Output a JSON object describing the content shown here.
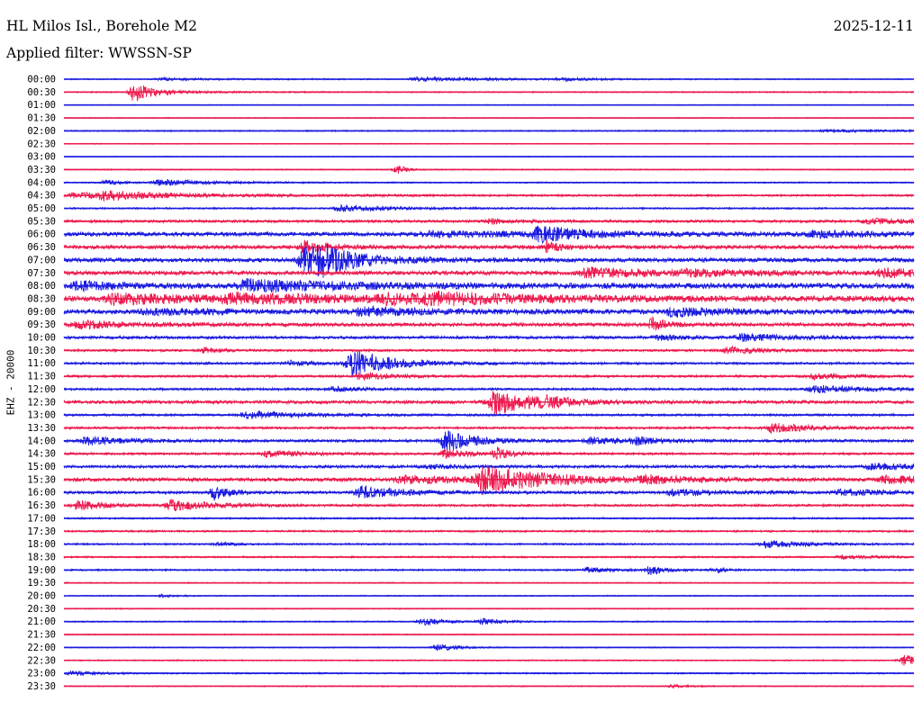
{
  "header": {
    "title": "HL Milos Isl., Borehole M2",
    "filter": "Applied filter: WWSSN-SP",
    "date": "2025-12-11"
  },
  "chart_data": {
    "type": "line",
    "ylabel": "EHZ - 20000",
    "x_unit": "minutes within trace line",
    "xlim": [
      0,
      30
    ],
    "colors": {
      "even_line": "#1a1adf",
      "odd_line": "#ec1a4e"
    },
    "rows": [
      {
        "time": "00:00",
        "noise": 0.6,
        "events": [
          [
            3.5,
            5,
            1.2
          ],
          [
            12.5,
            7,
            2.0
          ],
          [
            17.5,
            2,
            1.4
          ]
        ]
      },
      {
        "time": "00:30",
        "noise": 0.7,
        "events": [
          [
            2.5,
            1,
            10.0
          ],
          [
            2.6,
            4,
            2.0
          ]
        ]
      },
      {
        "time": "01:00",
        "noise": 0.5,
        "events": []
      },
      {
        "time": "01:30",
        "noise": 0.5,
        "events": []
      },
      {
        "time": "02:00",
        "noise": 0.7,
        "events": [
          [
            27,
            8,
            1.0
          ]
        ]
      },
      {
        "time": "02:30",
        "noise": 0.5,
        "events": []
      },
      {
        "time": "03:00",
        "noise": 0.5,
        "events": []
      },
      {
        "time": "03:30",
        "noise": 0.6,
        "events": [
          [
            11.8,
            0.5,
            5.0
          ]
        ]
      },
      {
        "time": "04:00",
        "noise": 0.7,
        "events": [
          [
            1.5,
            1,
            2.5
          ],
          [
            3.4,
            4,
            3.0
          ]
        ]
      },
      {
        "time": "04:30",
        "noise": 1.0,
        "events": [
          [
            0.5,
            10,
            3.0
          ],
          [
            1.4,
            2,
            4.0
          ]
        ]
      },
      {
        "time": "05:00",
        "noise": 0.9,
        "events": [
          [
            9.8,
            4,
            3.0
          ]
        ]
      },
      {
        "time": "05:30",
        "noise": 1.4,
        "events": [
          [
            15,
            2,
            2.5
          ],
          [
            28.5,
            5,
            2.5
          ]
        ]
      },
      {
        "time": "06:00",
        "noise": 2.2,
        "events": [
          [
            16.8,
            3,
            8.0
          ],
          [
            13,
            14,
            2.0
          ],
          [
            26.5,
            5,
            3.0
          ]
        ]
      },
      {
        "time": "06:30",
        "noise": 2.0,
        "events": [
          [
            17,
            1,
            6.0
          ],
          [
            8.5,
            2,
            6.0
          ]
        ]
      },
      {
        "time": "07:00",
        "noise": 2.2,
        "events": [
          [
            8.5,
            4,
            14.0
          ],
          [
            9.1,
            1.5,
            10.0
          ]
        ]
      },
      {
        "time": "07:30",
        "noise": 2.2,
        "events": [
          [
            18.5,
            5,
            5.0
          ],
          [
            29,
            5,
            4.0
          ],
          [
            22,
            6,
            2.5
          ]
        ]
      },
      {
        "time": "08:00",
        "noise": 2.8,
        "events": [
          [
            6.5,
            8,
            6.0
          ],
          [
            0.5,
            3,
            4.0
          ]
        ]
      },
      {
        "time": "08:30",
        "noise": 3.0,
        "events": [
          [
            1.8,
            7,
            5.0
          ],
          [
            6,
            9,
            4.0
          ],
          [
            11.5,
            9,
            4.0
          ],
          [
            13,
            6,
            3.0
          ]
        ]
      },
      {
        "time": "09:00",
        "noise": 2.5,
        "events": [
          [
            10.5,
            5,
            4.0
          ],
          [
            21.5,
            4,
            4.0
          ],
          [
            3,
            6,
            2.5
          ]
        ]
      },
      {
        "time": "09:30",
        "noise": 1.9,
        "events": [
          [
            0.5,
            4,
            4.0
          ],
          [
            20.8,
            1,
            7.0
          ]
        ]
      },
      {
        "time": "10:00",
        "noise": 1.5,
        "events": [
          [
            24,
            4,
            3.5
          ],
          [
            21,
            2,
            2.5
          ]
        ]
      },
      {
        "time": "10:30",
        "noise": 1.2,
        "events": [
          [
            23.5,
            3,
            3.5
          ],
          [
            5,
            1,
            3.0
          ]
        ]
      },
      {
        "time": "11:00",
        "noise": 1.2,
        "events": [
          [
            10.2,
            3,
            14.0
          ],
          [
            8,
            2,
            2.5
          ]
        ]
      },
      {
        "time": "11:30",
        "noise": 1.2,
        "events": [
          [
            26.5,
            3,
            3.0
          ],
          [
            10.5,
            2,
            4.0
          ]
        ]
      },
      {
        "time": "12:00",
        "noise": 1.2,
        "events": [
          [
            26.5,
            4,
            4.0
          ],
          [
            9.5,
            2,
            2.5
          ]
        ]
      },
      {
        "time": "12:30",
        "noise": 1.7,
        "events": [
          [
            15.2,
            3,
            14.0
          ],
          [
            17,
            1.5,
            4.0
          ]
        ]
      },
      {
        "time": "13:00",
        "noise": 1.2,
        "events": [
          [
            6.5,
            4,
            4.0
          ]
        ]
      },
      {
        "time": "13:30",
        "noise": 1.2,
        "events": [
          [
            25,
            3,
            5.0
          ]
        ]
      },
      {
        "time": "14:00",
        "noise": 1.5,
        "events": [
          [
            13.5,
            2,
            12.0
          ],
          [
            0.8,
            3,
            4.0
          ],
          [
            18.6,
            2,
            3.5
          ],
          [
            20.2,
            1.5,
            4.0
          ]
        ]
      },
      {
        "time": "14:30",
        "noise": 1.2,
        "events": [
          [
            7.2,
            3,
            3.0
          ],
          [
            13.5,
            2,
            4.0
          ],
          [
            15.3,
            1,
            6.0
          ]
        ]
      },
      {
        "time": "15:00",
        "noise": 1.5,
        "events": [
          [
            28.5,
            4,
            3.0
          ],
          [
            13,
            3,
            2.0
          ]
        ]
      },
      {
        "time": "15:30",
        "noise": 1.9,
        "events": [
          [
            14.8,
            5,
            14.0
          ],
          [
            12,
            5,
            4.0
          ],
          [
            20.5,
            3,
            3.5
          ],
          [
            29,
            3,
            4.5
          ]
        ]
      },
      {
        "time": "16:00",
        "noise": 1.5,
        "events": [
          [
            5.3,
            1,
            8.0
          ],
          [
            10.5,
            3,
            7.0
          ],
          [
            21.5,
            4,
            3.0
          ],
          [
            27.5,
            4,
            3.0
          ]
        ]
      },
      {
        "time": "16:30",
        "noise": 1.2,
        "events": [
          [
            0.5,
            2,
            5.0
          ],
          [
            3.8,
            3,
            6.0
          ]
        ]
      },
      {
        "time": "17:00",
        "noise": 0.9,
        "events": []
      },
      {
        "time": "17:30",
        "noise": 1.0,
        "events": []
      },
      {
        "time": "18:00",
        "noise": 0.9,
        "events": [
          [
            24.8,
            3,
            4.0
          ],
          [
            5.5,
            1,
            2.0
          ]
        ]
      },
      {
        "time": "18:30",
        "noise": 0.9,
        "events": [
          [
            27.5,
            2,
            2.0
          ]
        ]
      },
      {
        "time": "19:00",
        "noise": 0.9,
        "events": [
          [
            20.7,
            1,
            5.0
          ],
          [
            18.5,
            2,
            2.5
          ],
          [
            23,
            0.6,
            3.0
          ]
        ]
      },
      {
        "time": "19:30",
        "noise": 0.6,
        "events": []
      },
      {
        "time": "20:00",
        "noise": 0.6,
        "events": [
          [
            3.5,
            1,
            1.5
          ]
        ]
      },
      {
        "time": "20:30",
        "noise": 0.6,
        "events": []
      },
      {
        "time": "21:00",
        "noise": 0.7,
        "events": [
          [
            12.7,
            1.5,
            4.0
          ],
          [
            14.8,
            1.5,
            3.0
          ]
        ]
      },
      {
        "time": "21:30",
        "noise": 0.6,
        "events": []
      },
      {
        "time": "22:00",
        "noise": 0.6,
        "events": [
          [
            13.2,
            1.5,
            3.5
          ]
        ]
      },
      {
        "time": "22:30",
        "noise": 0.7,
        "events": [
          [
            29.7,
            1.5,
            6.0
          ]
        ]
      },
      {
        "time": "23:00",
        "noise": 0.8,
        "events": [
          [
            0.3,
            2,
            2.0
          ]
        ]
      },
      {
        "time": "23:30",
        "noise": 0.6,
        "events": [
          [
            21.5,
            1,
            2.0
          ]
        ]
      }
    ]
  }
}
